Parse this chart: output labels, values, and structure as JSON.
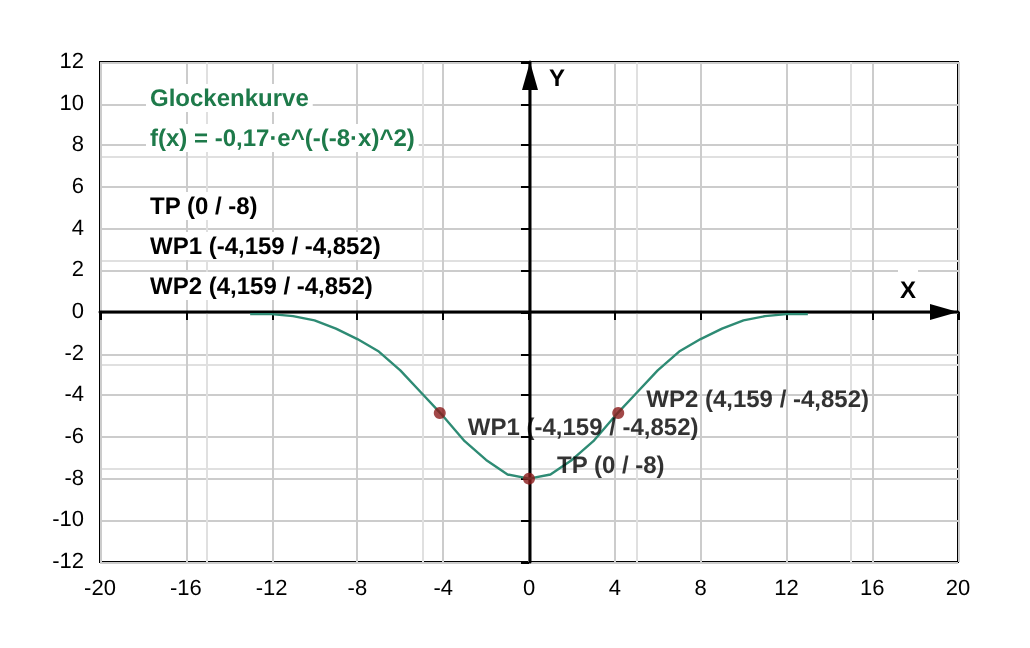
{
  "chart_data": {
    "type": "line",
    "title": "Glockenkurve",
    "subtitle": "f(x) = -0,17·e^(-(-8·x)^2)",
    "xlabel": "X",
    "ylabel": "Y",
    "series": [
      {
        "color": "#2e8b74",
        "marker": "none",
        "x": [
          -13,
          -12,
          -11,
          -10,
          -9,
          -8,
          -7,
          -6,
          -5,
          -4,
          -3,
          -2,
          -1,
          0,
          1,
          2,
          3,
          4,
          5,
          6,
          7,
          8,
          9,
          10,
          11,
          12,
          13
        ],
        "values": [
          -0.1,
          -0.1,
          -0.2,
          -0.4,
          -0.8,
          -1.3,
          -1.9,
          -2.8,
          -3.9,
          -5.0,
          -6.2,
          -7.1,
          -7.8,
          -8,
          -7.8,
          -7.1,
          -6.2,
          -5.0,
          -3.9,
          -2.8,
          -1.9,
          -1.3,
          -0.8,
          -0.4,
          -0.2,
          -0.1,
          -0.1
        ]
      },
      {
        "type": "scatter",
        "color": "#8b1a1a",
        "marker": "circle",
        "x": [
          -4.16,
          0,
          4.16
        ],
        "values": [
          -4.85,
          -8,
          -4.85
        ]
      }
    ],
    "annotations": [
      "TP (0 / -8)",
      "WP1 (-4,159 / -4,852)",
      "WP2 (4,159 / -4,852)",
      {
        "text": "WP1 (-4,159 / -4,852)",
        "x": -4.16,
        "y": -4.85
      },
      {
        "text": "WP2 (4,159 / -4,852)",
        "x": 4.16,
        "y": -4.85
      },
      {
        "text": "TP (0 / -8)",
        "x": 0,
        "y": -8
      }
    ],
    "xlim": [
      -20,
      20
    ],
    "ylim": [
      -12,
      12
    ],
    "xticks": [
      -20,
      -16,
      -12,
      -8,
      -4,
      0,
      4,
      8,
      12,
      16,
      20
    ],
    "yticks": [
      -12,
      -10,
      -8,
      -6,
      -4,
      -2,
      0,
      2,
      4,
      6,
      8,
      10,
      12
    ],
    "grid": true,
    "line_style": "solid"
  }
}
